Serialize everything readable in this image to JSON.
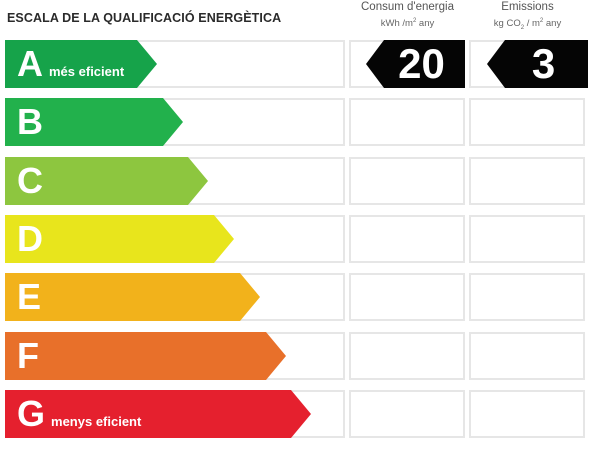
{
  "title": "ESCALA DE LA QUALIFICACIÓ ENERGÈTICA",
  "columns": {
    "consumption": {
      "title": "Consum d'energia",
      "unit_a": "kWh /m",
      "unit_sup": "2",
      "unit_b": " any"
    },
    "emissions": {
      "title": "Emissions",
      "unit_a": "kg CO",
      "unit_sub": "2",
      "unit_mid": " / m",
      "unit_sup": "2",
      "unit_b": " any"
    }
  },
  "ratings": [
    {
      "letter": "A",
      "desc": "més eficient",
      "color": "#16a34a"
    },
    {
      "letter": "B",
      "desc": "",
      "color": "#22b14c"
    },
    {
      "letter": "C",
      "desc": "",
      "color": "#8dc63f"
    },
    {
      "letter": "D",
      "desc": "",
      "color": "#e8e51c"
    },
    {
      "letter": "E",
      "desc": "",
      "color": "#f2b21b"
    },
    {
      "letter": "F",
      "desc": "",
      "color": "#e8702a"
    },
    {
      "letter": "G",
      "desc": "menys eficient",
      "color": "#e5202e"
    }
  ],
  "selected": {
    "letter": "A",
    "consumption_value": "20",
    "emissions_value": "3"
  }
}
